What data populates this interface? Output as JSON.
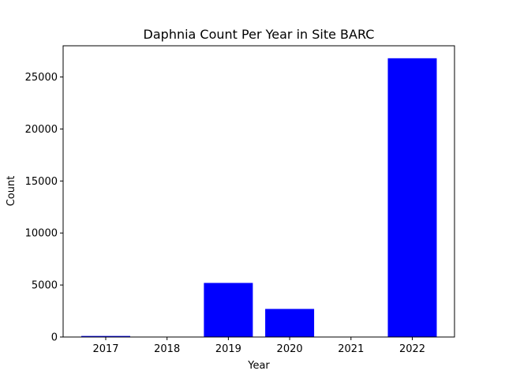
{
  "chart_data": {
    "type": "bar",
    "title": "Daphnia Count Per Year in Site BARC",
    "xlabel": "Year",
    "ylabel": "Count",
    "categories": [
      "2017",
      "2018",
      "2019",
      "2020",
      "2021",
      "2022"
    ],
    "values": [
      100,
      0,
      5200,
      2700,
      0,
      26800
    ],
    "ylim": [
      0,
      28000
    ],
    "yticks": [
      0,
      5000,
      10000,
      15000,
      20000,
      25000
    ],
    "bar_color": "#0000ff",
    "grid": false,
    "legend": "none"
  }
}
